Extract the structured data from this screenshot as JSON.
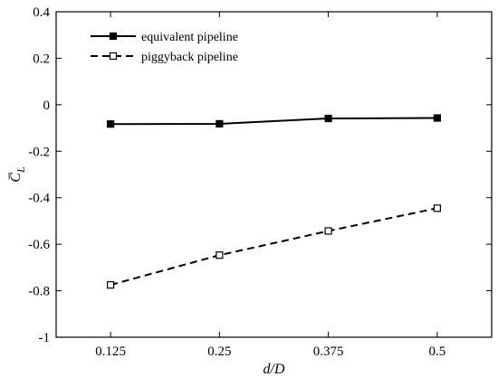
{
  "chart_data": {
    "type": "line",
    "x": [
      0.125,
      0.25,
      0.375,
      0.5
    ],
    "xtick_labels": [
      "0.125",
      "0.25",
      "0.375",
      "0.5"
    ],
    "xlabel": "d/D",
    "ylabel": "C̅L",
    "ylim": [
      -1,
      0.4
    ],
    "yticks": [
      -1,
      -0.8,
      -0.6,
      -0.4,
      -0.2,
      0,
      0.2,
      0.4
    ],
    "ytick_labels": [
      "-1",
      "-0.8",
      "-0.6",
      "-0.4",
      "-0.2",
      "0",
      "0.2",
      "0.4"
    ],
    "grid": false,
    "legend_position": "top-left",
    "series": [
      {
        "name": "equivalent pipeline",
        "values": [
          -0.083,
          -0.082,
          -0.059,
          -0.057
        ],
        "marker": "filled-square",
        "line_style": "solid",
        "color": "#000000"
      },
      {
        "name": "piggyback pipeline",
        "values": [
          -0.775,
          -0.647,
          -0.543,
          -0.445
        ],
        "marker": "open-square",
        "line_style": "dashed",
        "color": "#000000"
      }
    ]
  }
}
